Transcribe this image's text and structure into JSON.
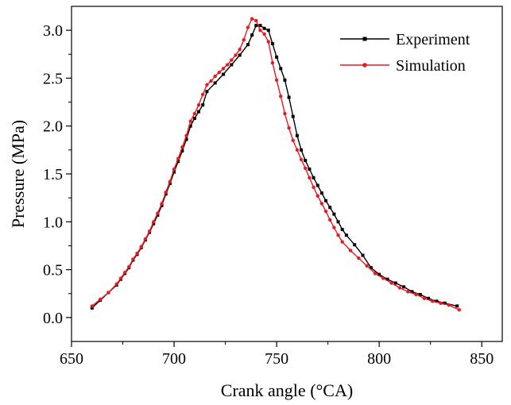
{
  "chart_data": {
    "type": "line",
    "xlabel": "Crank angle (°CA)",
    "ylabel": "Pressure (MPa)",
    "xlim": [
      650,
      860
    ],
    "ylim": [
      -0.25,
      3.25
    ],
    "xticks": [
      650,
      700,
      750,
      800,
      850
    ],
    "yticks": [
      0.0,
      0.5,
      1.0,
      1.5,
      2.0,
      2.5,
      3.0
    ],
    "xtick_labels": [
      "650",
      "700",
      "750",
      "800",
      "850"
    ],
    "ytick_labels": [
      "0.0",
      "0.5",
      "1.0",
      "1.5",
      "2.0",
      "2.5",
      "3.0"
    ],
    "grid": false,
    "legend_position": "top-right",
    "series": [
      {
        "name": "Experiment",
        "color": "#000000",
        "marker": "square",
        "points": [
          [
            660,
            0.1
          ],
          [
            664,
            0.18
          ],
          [
            668,
            0.26
          ],
          [
            672,
            0.34
          ],
          [
            674,
            0.4
          ],
          [
            676,
            0.46
          ],
          [
            678,
            0.52
          ],
          [
            680,
            0.6
          ],
          [
            682,
            0.66
          ],
          [
            684,
            0.73
          ],
          [
            686,
            0.81
          ],
          [
            688,
            0.89
          ],
          [
            690,
            0.98
          ],
          [
            692,
            1.07
          ],
          [
            694,
            1.17
          ],
          [
            696,
            1.29
          ],
          [
            698,
            1.4
          ],
          [
            700,
            1.52
          ],
          [
            702,
            1.63
          ],
          [
            704,
            1.74
          ],
          [
            706,
            1.86
          ],
          [
            708,
            2.0
          ],
          [
            710,
            2.08
          ],
          [
            712,
            2.15
          ],
          [
            714,
            2.22
          ],
          [
            716,
            2.36
          ],
          [
            720,
            2.45
          ],
          [
            724,
            2.54
          ],
          [
            728,
            2.64
          ],
          [
            732,
            2.74
          ],
          [
            736,
            2.85
          ],
          [
            738,
            2.95
          ],
          [
            740,
            3.05
          ],
          [
            742,
            3.05
          ],
          [
            744,
            3.02
          ],
          [
            746,
            3.0
          ],
          [
            748,
            2.86
          ],
          [
            750,
            2.72
          ],
          [
            752,
            2.6
          ],
          [
            754,
            2.48
          ],
          [
            756,
            2.3
          ],
          [
            758,
            2.1
          ],
          [
            760,
            1.9
          ],
          [
            762,
            1.75
          ],
          [
            764,
            1.64
          ],
          [
            766,
            1.55
          ],
          [
            768,
            1.46
          ],
          [
            770,
            1.38
          ],
          [
            772,
            1.3
          ],
          [
            774,
            1.22
          ],
          [
            776,
            1.15
          ],
          [
            778,
            1.08
          ],
          [
            780,
            1.0
          ],
          [
            782,
            0.92
          ],
          [
            784,
            0.86
          ],
          [
            788,
            0.76
          ],
          [
            792,
            0.65
          ],
          [
            796,
            0.52
          ],
          [
            800,
            0.45
          ],
          [
            804,
            0.4
          ],
          [
            808,
            0.36
          ],
          [
            812,
            0.32
          ],
          [
            816,
            0.27
          ],
          [
            820,
            0.24
          ],
          [
            824,
            0.2
          ],
          [
            828,
            0.17
          ],
          [
            832,
            0.15
          ],
          [
            838,
            0.12
          ]
        ]
      },
      {
        "name": "Simulation",
        "color": "#e8191f",
        "marker": "circle",
        "points": [
          [
            660,
            0.12
          ],
          [
            664,
            0.19
          ],
          [
            668,
            0.26
          ],
          [
            672,
            0.35
          ],
          [
            674,
            0.41
          ],
          [
            676,
            0.47
          ],
          [
            678,
            0.53
          ],
          [
            680,
            0.61
          ],
          [
            682,
            0.67
          ],
          [
            684,
            0.74
          ],
          [
            686,
            0.82
          ],
          [
            688,
            0.9
          ],
          [
            690,
            1.0
          ],
          [
            692,
            1.09
          ],
          [
            694,
            1.19
          ],
          [
            696,
            1.31
          ],
          [
            698,
            1.42
          ],
          [
            700,
            1.55
          ],
          [
            702,
            1.66
          ],
          [
            704,
            1.78
          ],
          [
            706,
            1.9
          ],
          [
            708,
            2.05
          ],
          [
            710,
            2.13
          ],
          [
            712,
            2.22
          ],
          [
            714,
            2.33
          ],
          [
            716,
            2.43
          ],
          [
            718,
            2.47
          ],
          [
            720,
            2.52
          ],
          [
            722,
            2.56
          ],
          [
            724,
            2.6
          ],
          [
            726,
            2.64
          ],
          [
            728,
            2.69
          ],
          [
            730,
            2.74
          ],
          [
            732,
            2.8
          ],
          [
            734,
            2.9
          ],
          [
            736,
            3.03
          ],
          [
            738,
            3.12
          ],
          [
            740,
            3.1
          ],
          [
            742,
            3.0
          ],
          [
            744,
            2.96
          ],
          [
            746,
            2.88
          ],
          [
            748,
            2.66
          ],
          [
            750,
            2.48
          ],
          [
            752,
            2.31
          ],
          [
            754,
            2.13
          ],
          [
            756,
            1.98
          ],
          [
            758,
            1.85
          ],
          [
            760,
            1.75
          ],
          [
            762,
            1.65
          ],
          [
            764,
            1.56
          ],
          [
            766,
            1.46
          ],
          [
            768,
            1.36
          ],
          [
            770,
            1.27
          ],
          [
            772,
            1.19
          ],
          [
            774,
            1.11
          ],
          [
            776,
            1.02
          ],
          [
            778,
            0.94
          ],
          [
            780,
            0.86
          ],
          [
            782,
            0.79
          ],
          [
            786,
            0.7
          ],
          [
            790,
            0.62
          ],
          [
            794,
            0.54
          ],
          [
            798,
            0.46
          ],
          [
            802,
            0.41
          ],
          [
            806,
            0.36
          ],
          [
            810,
            0.31
          ],
          [
            814,
            0.27
          ],
          [
            818,
            0.24
          ],
          [
            822,
            0.2
          ],
          [
            826,
            0.17
          ],
          [
            830,
            0.15
          ],
          [
            834,
            0.13
          ],
          [
            839,
            0.08
          ]
        ]
      }
    ]
  }
}
